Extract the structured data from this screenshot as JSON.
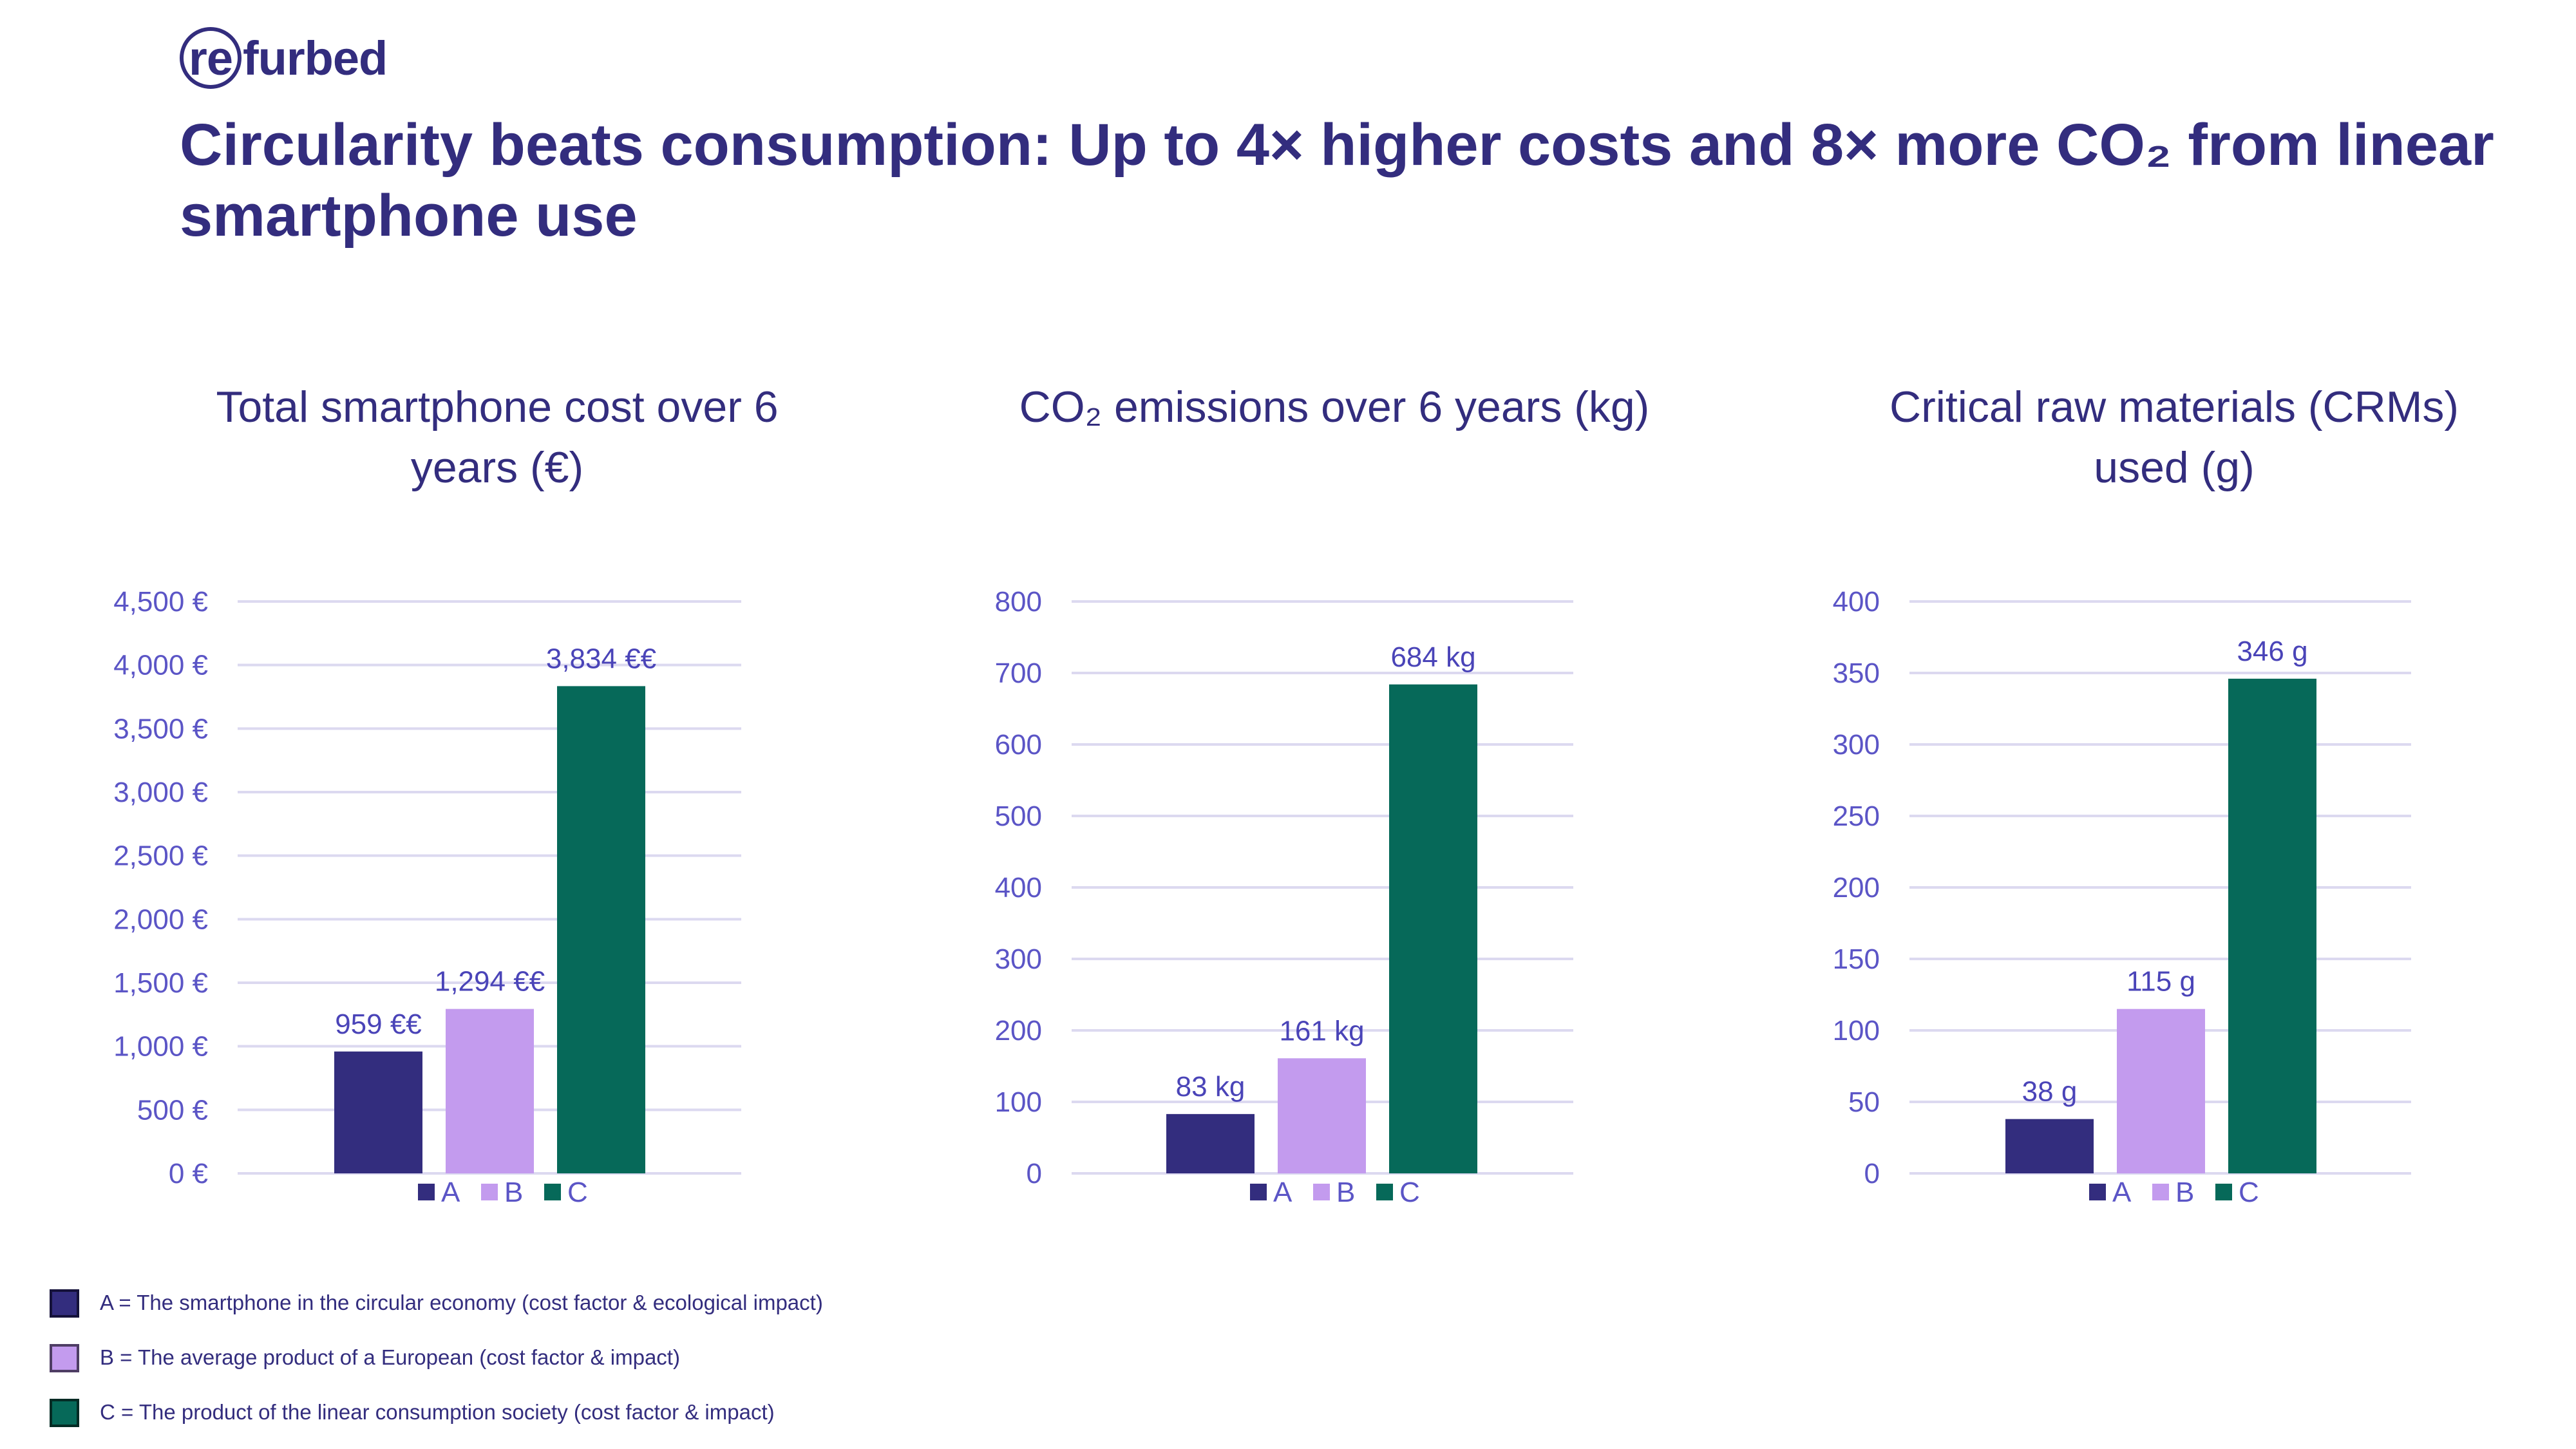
{
  "brand": {
    "logo_text_ring": "re",
    "logo_text_rest": "furbed"
  },
  "title": "Circularity beats consumption: Up to 4× higher costs and 8× more CO₂ from linear smartphone use",
  "colors": {
    "A": "#332d7e",
    "B": "#c39bee",
    "C": "#066959",
    "text": "#332d7e",
    "axis": "#5b55c6",
    "grid": "#dcd9f0"
  },
  "chart_data": [
    {
      "type": "bar",
      "title": "Total smartphone cost over 6 years (€)",
      "categories": [
        "A",
        "B",
        "C"
      ],
      "values": [
        959,
        1294,
        3834
      ],
      "data_labels": [
        "959 €€",
        "1,294 €€",
        "3,834 €€"
      ],
      "ylim": [
        0,
        4500
      ],
      "yticks": [
        0,
        500,
        1000,
        1500,
        2000,
        2500,
        3000,
        3500,
        4000,
        4500
      ],
      "ytick_labels": [
        "0 €",
        "500 €",
        "1,000 €",
        "1,500 €",
        "2,000 €",
        "2,500 €",
        "3,000 €",
        "3,500 €",
        "4,000 €",
        "4,500 €"
      ],
      "grid": true,
      "legend": "bottom"
    },
    {
      "type": "bar",
      "title": "CO₂ emissions over 6 years (kg)",
      "categories": [
        "A",
        "B",
        "C"
      ],
      "values": [
        83,
        161,
        684
      ],
      "data_labels": [
        "83 kg",
        "161 kg",
        "684 kg"
      ],
      "ylim": [
        0,
        800
      ],
      "yticks": [
        0,
        100,
        200,
        300,
        400,
        500,
        600,
        700,
        800
      ],
      "ytick_labels": [
        "0",
        "100",
        "200",
        "300",
        "400",
        "500",
        "600",
        "700",
        "800"
      ],
      "grid": true,
      "legend": "bottom"
    },
    {
      "type": "bar",
      "title": "Critical raw materials (CRMs) used (g)",
      "categories": [
        "A",
        "B",
        "C"
      ],
      "values": [
        38,
        115,
        346
      ],
      "data_labels": [
        "38 g",
        "115 g",
        "346 g"
      ],
      "ylim": [
        0,
        400
      ],
      "yticks": [
        0,
        50,
        100,
        150,
        200,
        250,
        300,
        350,
        400
      ],
      "ytick_labels": [
        "0",
        "50",
        "100",
        "150",
        "200",
        "250",
        "300",
        "350",
        "400"
      ],
      "grid": true,
      "legend": "bottom"
    }
  ],
  "footnote_legend": [
    {
      "key": "A",
      "text": "A = The smartphone in the circular economy (cost factor & ecological impact)"
    },
    {
      "key": "B",
      "text": "B = The average product of a European (cost factor & impact)"
    },
    {
      "key": "C",
      "text": "C = The product of the linear consumption society (cost factor & impact)"
    }
  ]
}
